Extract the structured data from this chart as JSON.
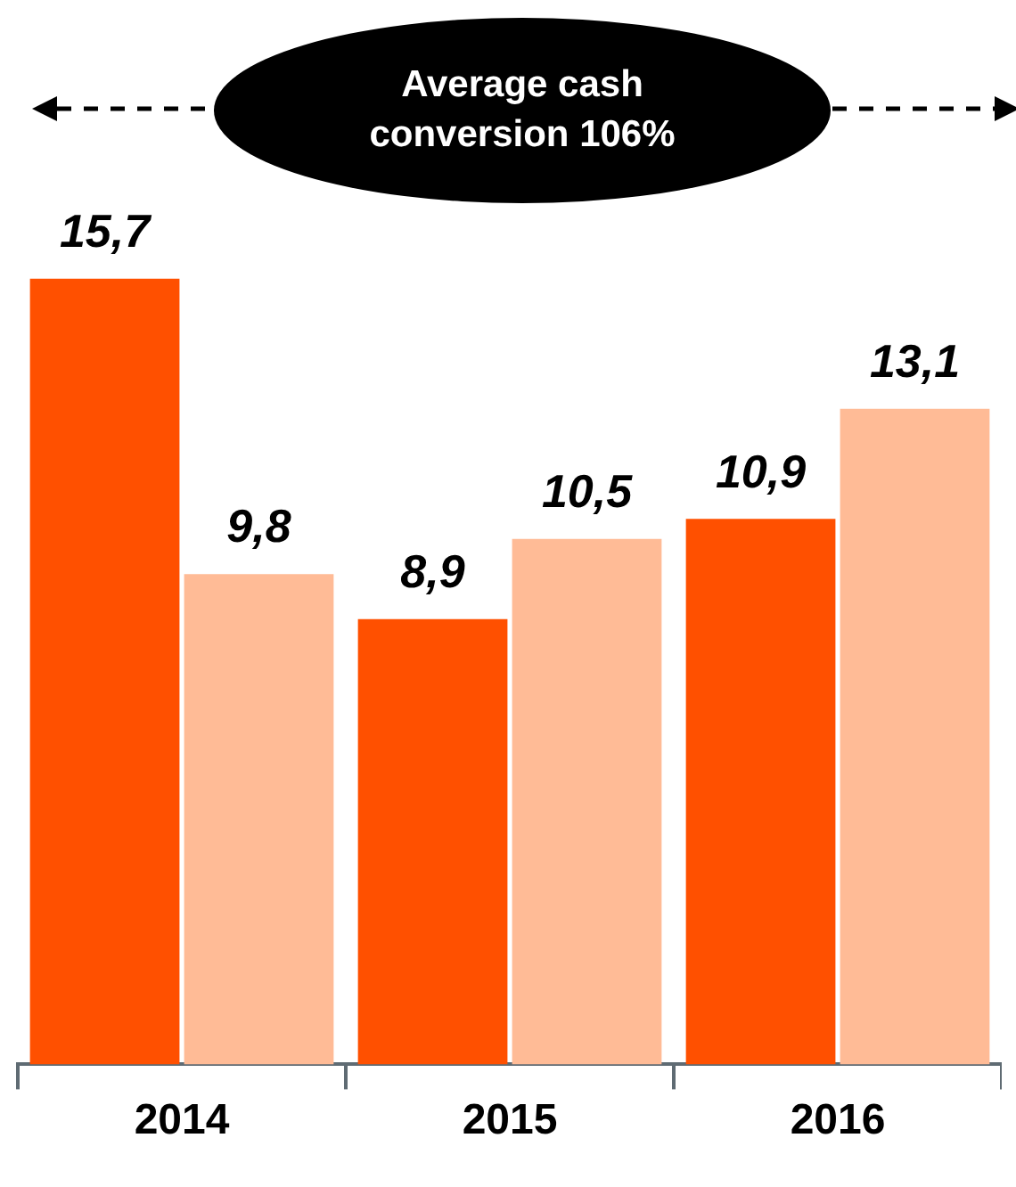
{
  "chart_data": {
    "type": "bar",
    "categories": [
      "2014",
      "2015",
      "2016"
    ],
    "series": [
      {
        "color": "#ff5000",
        "values": [
          15.7,
          8.9,
          10.9
        ],
        "value_labels": [
          "15,7",
          "8,9",
          "10,9"
        ]
      },
      {
        "color": "#ffbb96",
        "values": [
          9.8,
          10.5,
          13.1
        ],
        "value_labels": [
          "9,8",
          "10,5",
          "13,1"
        ]
      }
    ],
    "grid": false,
    "legend": false,
    "annotations": [
      "Average cash conversion 106%"
    ]
  }
}
